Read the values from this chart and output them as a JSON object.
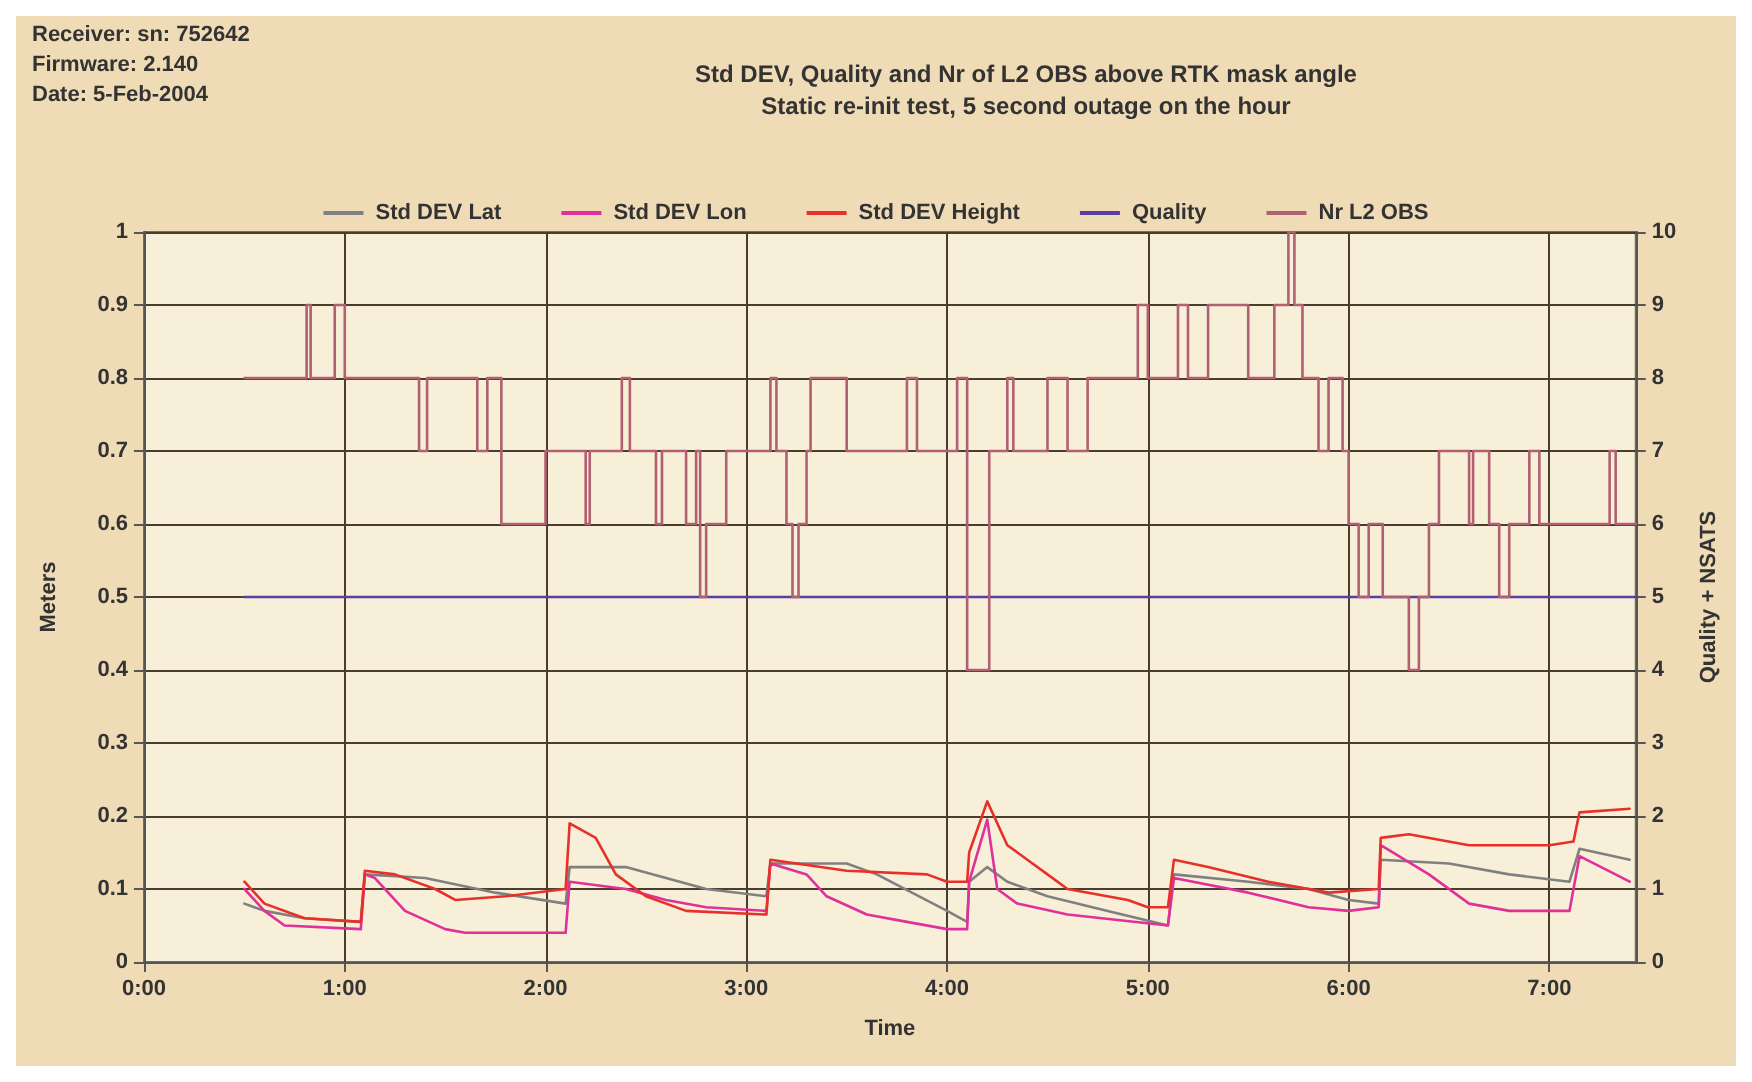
{
  "chart_data": {
    "type": "line",
    "title": "Std DEV, Quality and Nr of L2 OBS above RTK mask angle",
    "subtitle": "Static re-init test, 5 second outage on the hour",
    "xlabel": "Time",
    "ylabel": "Meters",
    "y2label": "Quality + NSATS",
    "annotations": [
      "Receiver: sn: 752642",
      "Firmware: 2.140",
      "Date: 5-Feb-2004"
    ],
    "series": [
      {
        "name": "Std DEV Lat",
        "color": "#808080",
        "x": [
          0.5,
          0.6,
          0.8,
          1.08,
          1.1,
          1.4,
          1.75,
          2.1,
          2.12,
          2.4,
          2.8,
          3.1,
          3.12,
          3.5,
          3.65,
          4.0,
          4.1,
          4.11,
          4.2,
          4.3,
          4.5,
          4.8,
          5.1,
          5.13,
          5.5,
          5.8,
          6.0,
          6.15,
          6.16,
          6.5,
          6.8,
          7.1,
          7.15,
          7.4
        ],
        "values": [
          0.08,
          0.07,
          0.06,
          0.055,
          0.12,
          0.115,
          0.095,
          0.08,
          0.13,
          0.13,
          0.1,
          0.09,
          0.135,
          0.135,
          0.12,
          0.07,
          0.055,
          0.11,
          0.13,
          0.11,
          0.09,
          0.07,
          0.05,
          0.12,
          0.11,
          0.1,
          0.085,
          0.08,
          0.14,
          0.135,
          0.12,
          0.11,
          0.155,
          0.14
        ]
      },
      {
        "name": "Std DEV Lon",
        "color": "#e0309a",
        "x": [
          0.5,
          0.6,
          0.7,
          1.08,
          1.1,
          1.15,
          1.3,
          1.5,
          1.6,
          2.1,
          2.12,
          2.4,
          2.6,
          2.8,
          3.1,
          3.12,
          3.3,
          3.4,
          3.6,
          3.8,
          4.0,
          4.1,
          4.11,
          4.2,
          4.25,
          4.35,
          4.6,
          5.1,
          5.13,
          5.5,
          5.8,
          6.0,
          6.15,
          6.16,
          6.4,
          6.6,
          6.8,
          7.1,
          7.15,
          7.4
        ],
        "values": [
          0.1,
          0.07,
          0.05,
          0.045,
          0.12,
          0.115,
          0.07,
          0.045,
          0.04,
          0.04,
          0.11,
          0.1,
          0.085,
          0.075,
          0.07,
          0.135,
          0.12,
          0.09,
          0.065,
          0.055,
          0.045,
          0.045,
          0.11,
          0.195,
          0.1,
          0.08,
          0.065,
          0.05,
          0.115,
          0.095,
          0.075,
          0.07,
          0.075,
          0.16,
          0.12,
          0.08,
          0.07,
          0.07,
          0.145,
          0.11
        ]
      },
      {
        "name": "Std DEV Height",
        "color": "#e8302a",
        "x": [
          0.5,
          0.6,
          0.8,
          1.08,
          1.1,
          1.25,
          1.45,
          1.55,
          1.8,
          2.1,
          2.12,
          2.25,
          2.35,
          2.5,
          2.7,
          3.1,
          3.12,
          3.5,
          3.9,
          4.0,
          4.1,
          4.11,
          4.2,
          4.3,
          4.5,
          4.6,
          4.9,
          5.0,
          5.1,
          5.13,
          5.3,
          5.6,
          5.9,
          6.15,
          6.16,
          6.3,
          6.6,
          7.0,
          7.12,
          7.15,
          7.4
        ],
        "values": [
          0.11,
          0.08,
          0.06,
          0.055,
          0.125,
          0.12,
          0.1,
          0.085,
          0.09,
          0.1,
          0.19,
          0.17,
          0.12,
          0.09,
          0.07,
          0.065,
          0.14,
          0.125,
          0.12,
          0.11,
          0.11,
          0.15,
          0.22,
          0.16,
          0.12,
          0.1,
          0.085,
          0.075,
          0.075,
          0.14,
          0.13,
          0.11,
          0.095,
          0.1,
          0.17,
          0.175,
          0.16,
          0.16,
          0.165,
          0.205,
          0.21
        ]
      },
      {
        "name": "Quality",
        "color": "#5a3fa0",
        "axis": "y2",
        "x": [
          0.5,
          7.43
        ],
        "values": [
          5,
          5
        ]
      },
      {
        "name": "Nr L2 OBS",
        "type": "step",
        "color": "#b06070",
        "axis": "y2",
        "x": [
          0.5,
          0.81,
          0.83,
          0.95,
          1.0,
          1.37,
          1.41,
          1.66,
          1.71,
          1.78,
          2.0,
          2.2,
          2.22,
          2.38,
          2.42,
          2.55,
          2.58,
          2.7,
          2.75,
          2.77,
          2.8,
          2.9,
          3.12,
          3.15,
          3.2,
          3.23,
          3.26,
          3.3,
          3.32,
          3.5,
          3.8,
          3.85,
          4.05,
          4.1,
          4.21,
          4.3,
          4.33,
          4.5,
          4.6,
          4.7,
          4.95,
          5.0,
          5.15,
          5.2,
          5.3,
          5.5,
          5.63,
          5.7,
          5.73,
          5.77,
          5.85,
          5.9,
          5.97,
          6.0,
          6.05,
          6.1,
          6.17,
          6.3,
          6.35,
          6.4,
          6.45,
          6.6,
          6.62,
          6.7,
          6.75,
          6.8,
          6.9,
          6.95,
          7.3,
          7.33,
          7.43
        ],
        "values": [
          8,
          9,
          8,
          9,
          8,
          7,
          8,
          7,
          8,
          6,
          7,
          6,
          7,
          8,
          7,
          6,
          7,
          6,
          7,
          5,
          6,
          7,
          8,
          7,
          6,
          5,
          6,
          7,
          8,
          7,
          8,
          7,
          8,
          4,
          7,
          8,
          7,
          8,
          7,
          8,
          9,
          8,
          9,
          8,
          9,
          8,
          9,
          10,
          9,
          8,
          7,
          8,
          7,
          6,
          5,
          6,
          5,
          4,
          5,
          6,
          7,
          6,
          7,
          6,
          5,
          6,
          7,
          6,
          7,
          6,
          6
        ]
      }
    ],
    "xlim": [
      0,
      7.43
    ],
    "xticks": [
      {
        "value": 0,
        "label": "0:00"
      },
      {
        "value": 1,
        "label": "1:00"
      },
      {
        "value": 2,
        "label": "2:00"
      },
      {
        "value": 3,
        "label": "3:00"
      },
      {
        "value": 4,
        "label": "4:00"
      },
      {
        "value": 5,
        "label": "5:00"
      },
      {
        "value": 6,
        "label": "6:00"
      },
      {
        "value": 7,
        "label": "7:00"
      }
    ],
    "ylim": [
      0,
      1
    ],
    "yticks": [
      0,
      0.1,
      0.2,
      0.3,
      0.4,
      0.5,
      0.6,
      0.7,
      0.8,
      0.9,
      1
    ],
    "y2lim": [
      0,
      10
    ],
    "y2ticks": [
      0,
      1,
      2,
      3,
      4,
      5,
      6,
      7,
      8,
      9,
      10
    ],
    "grid": true,
    "legend": "top",
    "marker": "none",
    "line_style": "solid"
  }
}
